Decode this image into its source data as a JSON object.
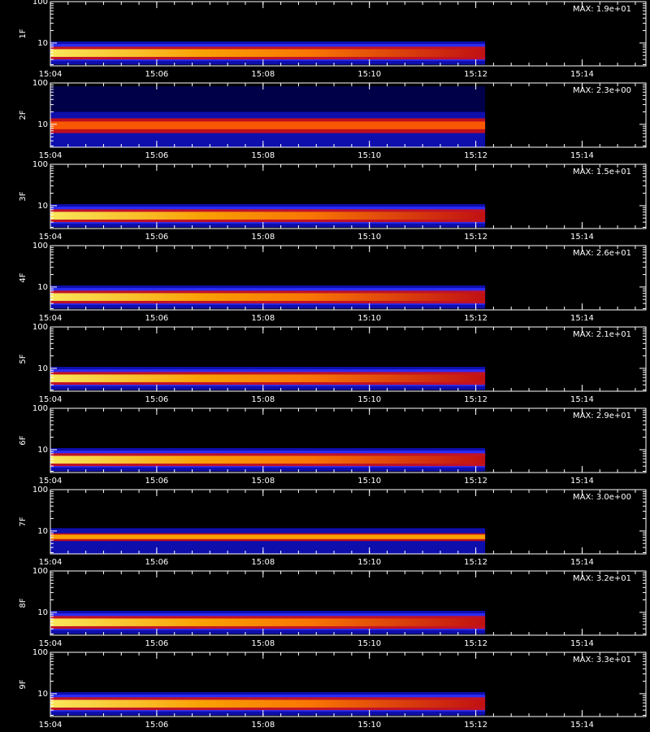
{
  "chart_data": [
    {
      "type": "spectrogram",
      "title": "MAX: 1.9e+01",
      "ylabel": "1F",
      "log_y": true,
      "ylim": [
        2.8,
        100
      ],
      "yticks": [
        10,
        100
      ],
      "xlim": [
        904,
        915.2
      ],
      "xticks": [
        {
          "value": 904,
          "label": "15:04"
        },
        {
          "value": 906,
          "label": "15:06"
        },
        {
          "value": 908,
          "label": "15:08"
        },
        {
          "value": 910,
          "label": "15:10"
        },
        {
          "value": 912,
          "label": "15:12"
        },
        {
          "value": 914,
          "label": "15:14"
        }
      ]
    },
    {
      "type": "spectrogram",
      "title": "MAX: 2.3e+00",
      "ylabel": "2F",
      "log_y": true,
      "ylim": [
        2.8,
        100
      ],
      "yticks": [
        10,
        100
      ],
      "xlim": [
        904,
        915.2
      ],
      "xticks": [
        {
          "value": 904,
          "label": "15:04"
        },
        {
          "value": 906,
          "label": "15:06"
        },
        {
          "value": 908,
          "label": "15:08"
        },
        {
          "value": 910,
          "label": "15:10"
        },
        {
          "value": 912,
          "label": "15:12"
        },
        {
          "value": 914,
          "label": "15:14"
        }
      ]
    },
    {
      "type": "spectrogram",
      "title": "MAX: 1.5e+01",
      "ylabel": "3F",
      "log_y": true,
      "ylim": [
        2.8,
        100
      ],
      "yticks": [
        10,
        100
      ],
      "xlim": [
        904,
        915.2
      ],
      "xticks": [
        {
          "value": 904,
          "label": "15:04"
        },
        {
          "value": 906,
          "label": "15:06"
        },
        {
          "value": 908,
          "label": "15:08"
        },
        {
          "value": 910,
          "label": "15:10"
        },
        {
          "value": 912,
          "label": "15:12"
        },
        {
          "value": 914,
          "label": "15:14"
        }
      ]
    },
    {
      "type": "spectrogram",
      "title": "MAX: 2.6e+01",
      "ylabel": "4F",
      "log_y": true,
      "ylim": [
        2.8,
        100
      ],
      "yticks": [
        10,
        100
      ],
      "xlim": [
        904,
        915.2
      ],
      "xticks": [
        {
          "value": 904,
          "label": "15:04"
        },
        {
          "value": 906,
          "label": "15:06"
        },
        {
          "value": 908,
          "label": "15:08"
        },
        {
          "value": 910,
          "label": "15:10"
        },
        {
          "value": 912,
          "label": "15:12"
        },
        {
          "value": 914,
          "label": "15:14"
        }
      ]
    },
    {
      "type": "spectrogram",
      "title": "MAX: 2.1e+01",
      "ylabel": "5F",
      "log_y": true,
      "ylim": [
        2.8,
        100
      ],
      "yticks": [
        10,
        100
      ],
      "xlim": [
        904,
        915.2
      ],
      "xticks": [
        {
          "value": 904,
          "label": "15:04"
        },
        {
          "value": 906,
          "label": "15:06"
        },
        {
          "value": 908,
          "label": "15:08"
        },
        {
          "value": 910,
          "label": "15:10"
        },
        {
          "value": 912,
          "label": "15:12"
        },
        {
          "value": 914,
          "label": "15:14"
        }
      ]
    },
    {
      "type": "spectrogram",
      "title": "MAX: 2.9e+01",
      "ylabel": "6F",
      "log_y": true,
      "ylim": [
        2.8,
        100
      ],
      "yticks": [
        10,
        100
      ],
      "xlim": [
        904,
        915.2
      ],
      "xticks": [
        {
          "value": 904,
          "label": "15:04"
        },
        {
          "value": 906,
          "label": "15:06"
        },
        {
          "value": 908,
          "label": "15:08"
        },
        {
          "value": 910,
          "label": "15:10"
        },
        {
          "value": 912,
          "label": "15:12"
        },
        {
          "value": 914,
          "label": "15:14"
        }
      ]
    },
    {
      "type": "spectrogram",
      "title": "MAX: 3.0e+00",
      "ylabel": "7F",
      "log_y": true,
      "ylim": [
        2.8,
        100
      ],
      "yticks": [
        10,
        100
      ],
      "xlim": [
        904,
        915.2
      ],
      "xticks": [
        {
          "value": 904,
          "label": "15:04"
        },
        {
          "value": 906,
          "label": "15:06"
        },
        {
          "value": 908,
          "label": "15:08"
        },
        {
          "value": 910,
          "label": "15:10"
        },
        {
          "value": 912,
          "label": "15:12"
        },
        {
          "value": 914,
          "label": "15:14"
        }
      ]
    },
    {
      "type": "spectrogram",
      "title": "MAX: 3.2e+01",
      "ylabel": "8F",
      "log_y": true,
      "ylim": [
        2.8,
        100
      ],
      "yticks": [
        10,
        100
      ],
      "xlim": [
        904,
        915.2
      ],
      "xticks": [
        {
          "value": 904,
          "label": "15:04"
        },
        {
          "value": 906,
          "label": "15:06"
        },
        {
          "value": 908,
          "label": "15:08"
        },
        {
          "value": 910,
          "label": "15:10"
        },
        {
          "value": 912,
          "label": "15:12"
        },
        {
          "value": 914,
          "label": "15:14"
        }
      ]
    },
    {
      "type": "spectrogram",
      "title": "MAX: 3.3e+01",
      "ylabel": "9F",
      "log_y": true,
      "ylim": [
        2.8,
        100
      ],
      "yticks": [
        10,
        100
      ],
      "xlim": [
        904,
        915.2
      ],
      "xticks": [
        {
          "value": 904,
          "label": "15:04"
        },
        {
          "value": 906,
          "label": "15:06"
        },
        {
          "value": 908,
          "label": "15:08"
        },
        {
          "value": 910,
          "label": "15:10"
        },
        {
          "value": 912,
          "label": "15:12"
        },
        {
          "value": 914,
          "label": "15:14"
        }
      ]
    }
  ]
}
